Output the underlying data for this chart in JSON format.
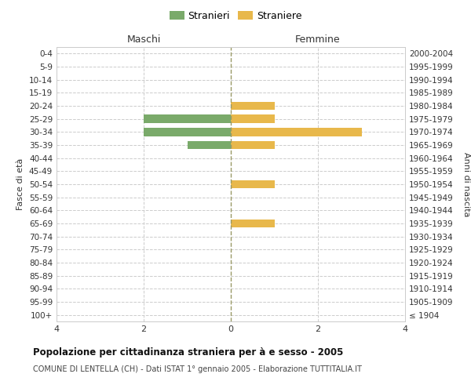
{
  "age_groups": [
    "100+",
    "95-99",
    "90-94",
    "85-89",
    "80-84",
    "75-79",
    "70-74",
    "65-69",
    "60-64",
    "55-59",
    "50-54",
    "45-49",
    "40-44",
    "35-39",
    "30-34",
    "25-29",
    "20-24",
    "15-19",
    "10-14",
    "5-9",
    "0-4"
  ],
  "birth_years": [
    "≤ 1904",
    "1905-1909",
    "1910-1914",
    "1915-1919",
    "1920-1924",
    "1925-1929",
    "1930-1934",
    "1935-1939",
    "1940-1944",
    "1945-1949",
    "1950-1954",
    "1955-1959",
    "1960-1964",
    "1965-1969",
    "1970-1974",
    "1975-1979",
    "1980-1984",
    "1985-1989",
    "1990-1994",
    "1995-1999",
    "2000-2004"
  ],
  "males": [
    0,
    0,
    0,
    0,
    0,
    0,
    0,
    0,
    0,
    0,
    0,
    0,
    0,
    1,
    2,
    2,
    0,
    0,
    0,
    0,
    0
  ],
  "females": [
    0,
    0,
    0,
    0,
    0,
    0,
    0,
    1,
    0,
    0,
    1,
    0,
    0,
    1,
    3,
    1,
    1,
    0,
    0,
    0,
    0
  ],
  "male_color": "#7aaa6a",
  "female_color": "#e8b84b",
  "title": "Popolazione per cittadinanza straniera per à e sesso - 2005",
  "subtitle": "COMUNE DI LENTELLA (CH) - Dati ISTAT 1° gennaio 2005 - Elaborazione TUTTITALIA.IT",
  "ylabel_left": "Fasce di età",
  "ylabel_right": "Anni di nascita",
  "xlim": 4,
  "legend_stranieri": "Stranieri",
  "legend_straniere": "Straniere",
  "maschi_label": "Maschi",
  "femmine_label": "Femmine",
  "bg_color": "#ffffff",
  "grid_color": "#cccccc",
  "center_line_color": "#aaaaaa"
}
